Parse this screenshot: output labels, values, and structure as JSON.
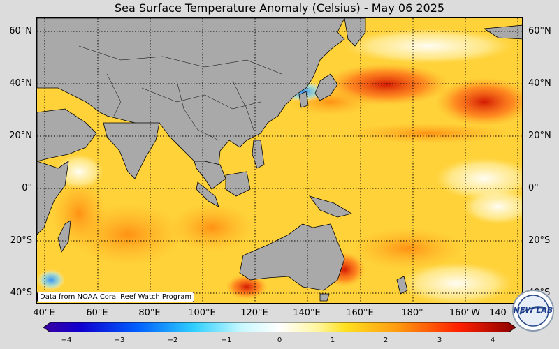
{
  "title": "Sea Surface Temperature Anomaly (Celsius) - May 06 2025",
  "lat_labels": [
    "60°N",
    "40°N",
    "20°N",
    "0°",
    "20°S",
    "40°S"
  ],
  "lon_labels": [
    "40°E",
    "60°E",
    "80°E",
    "100°E",
    "120°E",
    "140°E",
    "160°E",
    "180°",
    "160°W",
    "140"
  ],
  "credit": "Data from NOAA Coral Reef Watch Program",
  "colorbar": {
    "min": -4,
    "max": 4,
    "ticks": [
      "−4",
      "−3",
      "−2",
      "−1",
      "0",
      "1",
      "2",
      "3",
      "4"
    ]
  },
  "logo": {
    "text": "NEW LAB"
  },
  "colors": {
    "land": "#a9a9a9",
    "ocean_warm": "#ffd84a",
    "ocean_hot": "#ff9a1a",
    "ocean_very_hot": "#e02010",
    "ocean_neutral": "#ffffff",
    "ocean_cool": "#9be8ff",
    "ocean_cold": "#1a8cff"
  }
}
